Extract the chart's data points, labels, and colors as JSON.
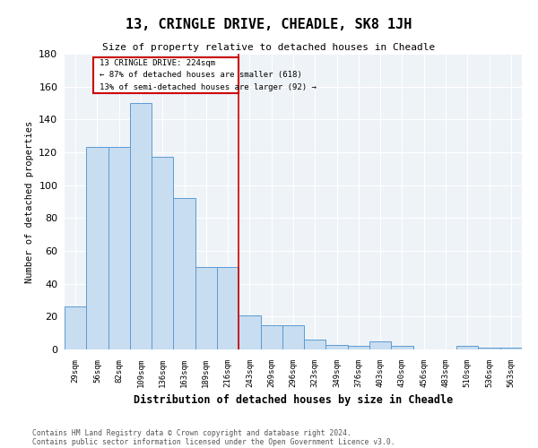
{
  "title": "13, CRINGLE DRIVE, CHEADLE, SK8 1JH",
  "subtitle": "Size of property relative to detached houses in Cheadle",
  "xlabel": "Distribution of detached houses by size in Cheadle",
  "ylabel": "Number of detached properties",
  "footnote1": "Contains HM Land Registry data © Crown copyright and database right 2024.",
  "footnote2": "Contains public sector information licensed under the Open Government Licence v3.0.",
  "annotation_line1": "13 CRINGLE DRIVE: 224sqm",
  "annotation_line2": "← 87% of detached houses are smaller (618)",
  "annotation_line3": "13% of semi-detached houses are larger (92) →",
  "bar_color": "#c8ddef",
  "bar_edge_color": "#5b9bd5",
  "red_line_color": "#cc0000",
  "categories": [
    "29sqm",
    "56sqm",
    "82sqm",
    "109sqm",
    "136sqm",
    "163sqm",
    "189sqm",
    "216sqm",
    "243sqm",
    "269sqm",
    "296sqm",
    "323sqm",
    "349sqm",
    "376sqm",
    "403sqm",
    "430sqm",
    "456sqm",
    "483sqm",
    "510sqm",
    "536sqm",
    "563sqm"
  ],
  "values": [
    26,
    123,
    123,
    150,
    117,
    92,
    50,
    50,
    21,
    15,
    15,
    6,
    3,
    2,
    5,
    2,
    0,
    0,
    2,
    1,
    1
  ],
  "red_line_index": 7,
  "ylim": [
    0,
    180
  ],
  "yticks": [
    0,
    20,
    40,
    60,
    80,
    100,
    120,
    140,
    160,
    180
  ]
}
